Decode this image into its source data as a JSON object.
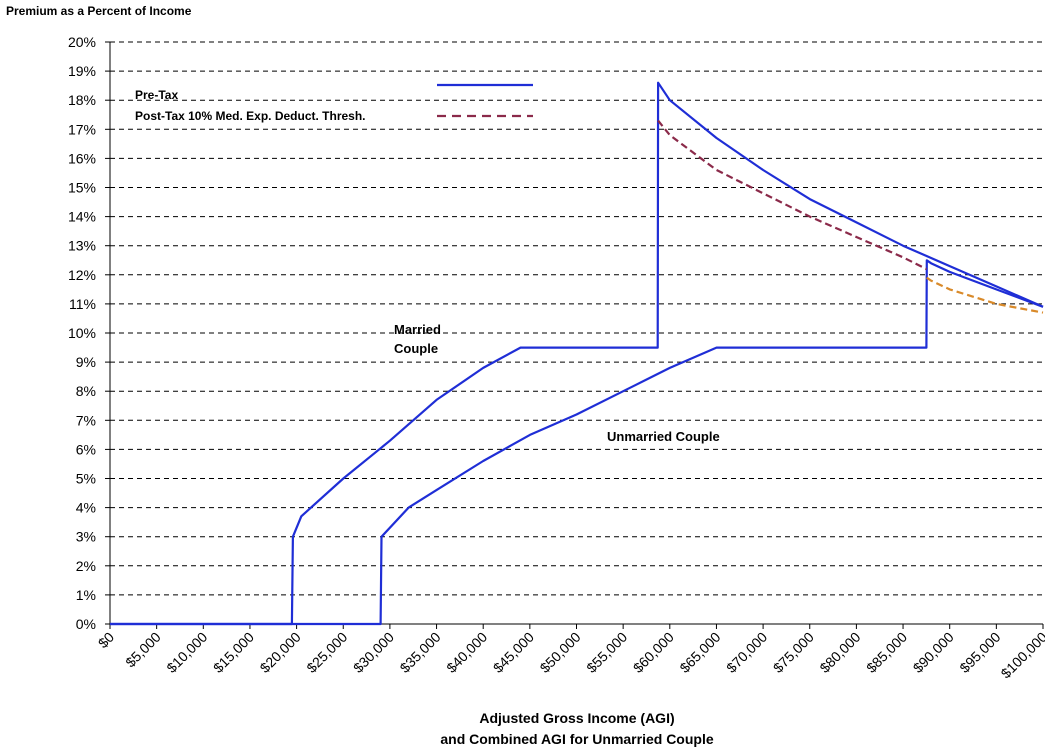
{
  "chart_data": {
    "type": "line",
    "title": "Premium as a Percent of Income",
    "xlabel_line1": "Adjusted Gross Income (AGI)",
    "xlabel_line2": "and Combined AGI for Unmarried Couple",
    "ylabel": "",
    "ylim": [
      0,
      20
    ],
    "xlim": [
      0,
      100000
    ],
    "grid": true,
    "legend_position": "top-left-center",
    "y_ticks": [
      "0%",
      "1%",
      "2%",
      "3%",
      "4%",
      "5%",
      "6%",
      "7%",
      "8%",
      "9%",
      "10%",
      "11%",
      "12%",
      "13%",
      "14%",
      "15%",
      "16%",
      "17%",
      "18%",
      "19%",
      "20%"
    ],
    "x_ticks": [
      "$0",
      "$5,000",
      "$10,000",
      "$15,000",
      "$20,000",
      "$25,000",
      "$30,000",
      "$35,000",
      "$40,000",
      "$45,000",
      "$50,000",
      "$55,000",
      "$60,000",
      "$65,000",
      "$70,000",
      "$75,000",
      "$80,000",
      "$85,000",
      "$90,000",
      "$95,000",
      "$100,000"
    ],
    "legend": [
      {
        "name": "Pre-Tax",
        "color": "#1f2ed6",
        "style": "solid"
      },
      {
        "name": "Post-Tax 10% Med. Exp. Deduct. Thresh.",
        "color": "#8b2a4a",
        "style": "dashed"
      }
    ],
    "annotations": [
      {
        "text_line1": "Married",
        "text_line2": "Couple",
        "x": 30500,
        "y": 10.0
      },
      {
        "text": "Unmarried Couple",
        "x": 54500,
        "y": 6.1
      }
    ],
    "series": [
      {
        "name": "Pre-Tax",
        "group": "Married Couple",
        "color": "#1f2ed6",
        "style": "solid",
        "x": [
          0,
          19500,
          19600,
          20500,
          25000,
          30000,
          35000,
          40000,
          44000,
          58700,
          58750,
          60000,
          65000,
          70000,
          75000,
          80000,
          85000,
          90000,
          95000,
          100000
        ],
        "y": [
          0,
          0,
          3.0,
          3.7,
          5.0,
          6.3,
          7.7,
          8.8,
          9.5,
          9.5,
          18.6,
          18.0,
          16.7,
          15.6,
          14.6,
          13.8,
          13.0,
          12.3,
          11.6,
          10.9
        ]
      },
      {
        "name": "Pre-Tax",
        "group": "Unmarried Couple",
        "color": "#1f2ed6",
        "style": "solid",
        "x": [
          0,
          29000,
          29100,
          32000,
          35000,
          40000,
          45000,
          50000,
          55000,
          60000,
          65000,
          87500,
          87550,
          88000,
          90000,
          95000,
          100000
        ],
        "y": [
          0,
          0,
          3.0,
          4.0,
          4.6,
          5.6,
          6.5,
          7.2,
          8.0,
          8.8,
          9.5,
          9.5,
          12.5,
          12.4,
          12.1,
          11.5,
          10.9
        ]
      },
      {
        "name": "Post-Tax 10% Med. Exp. Deduct. Thresh.",
        "group": "Married Couple",
        "color": "#8b2a4a",
        "style": "dashed",
        "x": [
          58750,
          60000,
          65000,
          70000,
          75000,
          80000,
          85000,
          87500
        ],
        "y": [
          17.3,
          16.8,
          15.6,
          14.8,
          14.0,
          13.3,
          12.6,
          12.2
        ]
      },
      {
        "name": "Post-Tax 10% Med. Exp. Deduct. Thresh.",
        "group": "Unmarried Couple",
        "color": "#d98a2a",
        "style": "dashed",
        "x": [
          87550,
          88000,
          90000,
          95000,
          100000
        ],
        "y": [
          11.9,
          11.8,
          11.5,
          11.0,
          10.7
        ]
      }
    ]
  }
}
